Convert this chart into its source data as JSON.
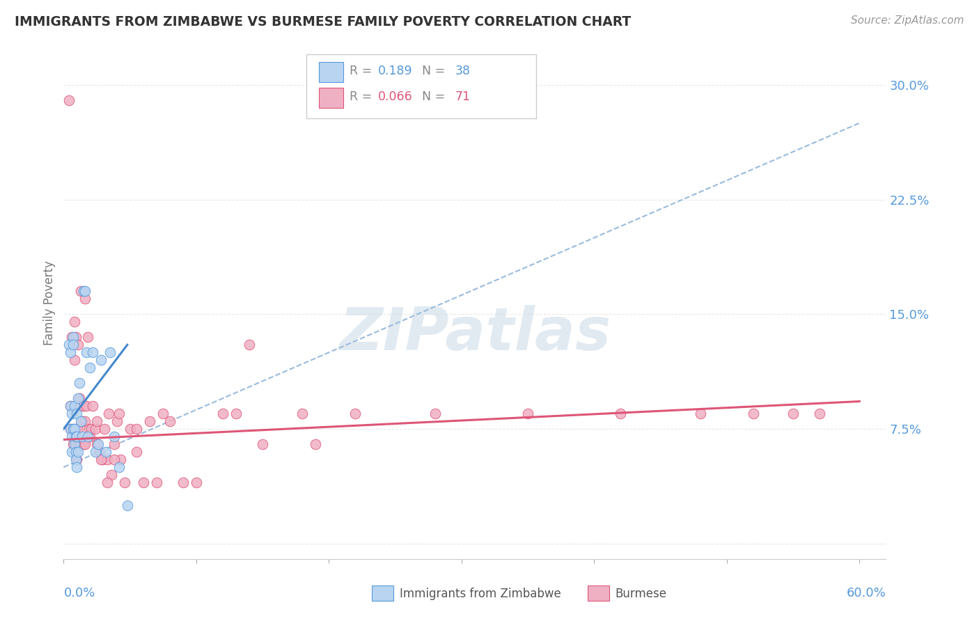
{
  "title": "IMMIGRANTS FROM ZIMBABWE VS BURMESE FAMILY POVERTY CORRELATION CHART",
  "source": "Source: ZipAtlas.com",
  "ylabel": "Family Poverty",
  "ylabel_color": "#777777",
  "ytick_vals": [
    0.0,
    0.075,
    0.15,
    0.225,
    0.3
  ],
  "ytick_labels": [
    "",
    "7.5%",
    "15.0%",
    "22.5%",
    "30.0%"
  ],
  "ytick_color": "#5599dd",
  "xlim": [
    0.0,
    0.62
  ],
  "ylim": [
    -0.01,
    0.325
  ],
  "xmin_label": "0.0%",
  "xmax_label": "60.0%",
  "xlabel_color": "#5599dd",
  "zim_fill": "#b8d4f0",
  "zim_edge": "#5599dd",
  "bur_fill": "#f0b0c4",
  "bur_edge": "#dd5577",
  "zim_line_color": "#4488cc",
  "bur_line_color": "#dd5577",
  "gray_dash_color": "#99bbdd",
  "R_zimbabwe": 0.189,
  "N_zimbabwe": 38,
  "R_burmese": 0.066,
  "N_burmese": 71,
  "title_color": "#333333",
  "source_color": "#999999",
  "grid_color": "#e8e8e8",
  "background": "#ffffff",
  "watermark": "ZIPatlas",
  "watermark_color": "#d0dde8",
  "scatter_size": 110,
  "zim_x": [
    0.004,
    0.005,
    0.005,
    0.005,
    0.006,
    0.006,
    0.006,
    0.007,
    0.007,
    0.007,
    0.008,
    0.008,
    0.008,
    0.009,
    0.009,
    0.009,
    0.01,
    0.01,
    0.01,
    0.011,
    0.011,
    0.012,
    0.013,
    0.014,
    0.015,
    0.016,
    0.017,
    0.018,
    0.02,
    0.022,
    0.024,
    0.026,
    0.028,
    0.032,
    0.035,
    0.038,
    0.042,
    0.048
  ],
  "zim_y": [
    0.13,
    0.125,
    0.09,
    0.075,
    0.085,
    0.07,
    0.06,
    0.135,
    0.13,
    0.075,
    0.09,
    0.075,
    0.065,
    0.07,
    0.06,
    0.055,
    0.085,
    0.07,
    0.05,
    0.095,
    0.06,
    0.105,
    0.08,
    0.07,
    0.165,
    0.165,
    0.125,
    0.07,
    0.115,
    0.125,
    0.06,
    0.065,
    0.12,
    0.06,
    0.125,
    0.07,
    0.05,
    0.025
  ],
  "bur_x": [
    0.004,
    0.005,
    0.005,
    0.006,
    0.007,
    0.007,
    0.008,
    0.008,
    0.009,
    0.009,
    0.01,
    0.01,
    0.011,
    0.011,
    0.012,
    0.012,
    0.013,
    0.013,
    0.014,
    0.015,
    0.015,
    0.016,
    0.016,
    0.017,
    0.018,
    0.019,
    0.02,
    0.021,
    0.022,
    0.024,
    0.025,
    0.027,
    0.029,
    0.031,
    0.033,
    0.036,
    0.038,
    0.04,
    0.043,
    0.046,
    0.05,
    0.055,
    0.06,
    0.07,
    0.08,
    0.09,
    0.1,
    0.12,
    0.15,
    0.18,
    0.22,
    0.28,
    0.35,
    0.42,
    0.48,
    0.52,
    0.55,
    0.57,
    0.19,
    0.13,
    0.075,
    0.065,
    0.038,
    0.016,
    0.14,
    0.034,
    0.025,
    0.028,
    0.033,
    0.042,
    0.055
  ],
  "bur_y": [
    0.29,
    0.09,
    0.075,
    0.135,
    0.075,
    0.065,
    0.145,
    0.12,
    0.135,
    0.065,
    0.075,
    0.055,
    0.13,
    0.075,
    0.095,
    0.065,
    0.165,
    0.09,
    0.08,
    0.09,
    0.065,
    0.08,
    0.065,
    0.09,
    0.135,
    0.075,
    0.07,
    0.075,
    0.09,
    0.075,
    0.065,
    0.06,
    0.055,
    0.075,
    0.055,
    0.045,
    0.065,
    0.08,
    0.055,
    0.04,
    0.075,
    0.075,
    0.04,
    0.04,
    0.08,
    0.04,
    0.04,
    0.085,
    0.065,
    0.085,
    0.085,
    0.085,
    0.085,
    0.085,
    0.085,
    0.085,
    0.085,
    0.085,
    0.065,
    0.085,
    0.085,
    0.08,
    0.055,
    0.16,
    0.13,
    0.085,
    0.08,
    0.055,
    0.04,
    0.085,
    0.06
  ],
  "zim_trend_x0": 0.0,
  "zim_trend_y0": 0.075,
  "zim_trend_x1": 0.048,
  "zim_trend_y1": 0.13,
  "bur_trend_x0": 0.0,
  "bur_trend_y0": 0.068,
  "bur_trend_x1": 0.6,
  "bur_trend_y1": 0.093,
  "gray_trend_x0": 0.0,
  "gray_trend_y0": 0.05,
  "gray_trend_x1": 0.6,
  "gray_trend_y1": 0.275
}
